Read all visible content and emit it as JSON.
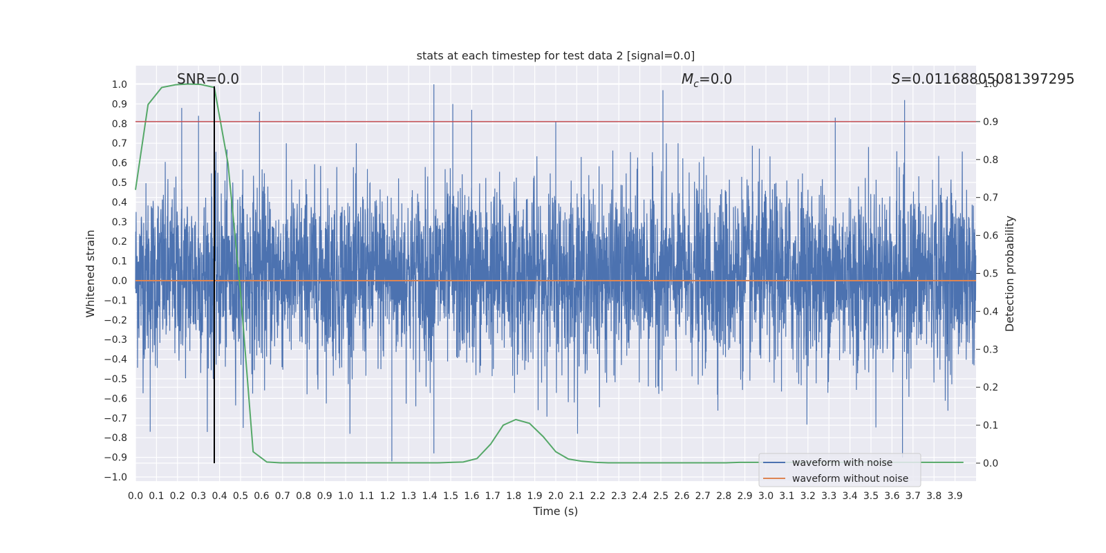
{
  "chart_data": {
    "type": "line",
    "title": "stats at each timestep for test data 2 [signal=0.0]",
    "xlabel": "Time (s)",
    "ylabel": "Whitened strain",
    "y2label": "Detection probability",
    "xlim": [
      0.0,
      4.0
    ],
    "ylim": [
      -1.03,
      1.05
    ],
    "y2lim": [
      -0.05,
      1.0
    ],
    "x_ticks": [
      0.0,
      0.1,
      0.2,
      0.3,
      0.4,
      0.5,
      0.6,
      0.7,
      0.8,
      0.9,
      1.0,
      1.1,
      1.2,
      1.3,
      1.4,
      1.5,
      1.6,
      1.7,
      1.8,
      1.9,
      2.0,
      2.1,
      2.2,
      2.3,
      2.4,
      2.5,
      2.6,
      2.7,
      2.8,
      2.9,
      3.0,
      3.1,
      3.2,
      3.3,
      3.4,
      3.5,
      3.6,
      3.7,
      3.8,
      3.9
    ],
    "x_tick_labels": [
      "0.0",
      "0.1",
      "0.2",
      "0.3",
      "0.4",
      "0.5",
      "0.6",
      "0.7",
      "0.8",
      "0.9",
      "1.0",
      "1.1",
      "1.2",
      "1.3",
      "1.4",
      "1.5",
      "1.6",
      "1.7",
      "1.8",
      "1.9",
      "2.0",
      "2.1",
      "2.2",
      "2.3",
      "2.4",
      "2.5",
      "2.6",
      "2.7",
      "2.8",
      "2.9",
      "3.0",
      "3.1",
      "3.2",
      "3.3",
      "3.4",
      "3.5",
      "3.6",
      "3.7",
      "3.8",
      "3.9"
    ],
    "y_ticks": [
      1.0,
      0.9,
      0.8,
      0.7,
      0.6,
      0.5,
      0.4,
      0.3,
      0.2,
      0.1,
      0.0,
      -0.1,
      -0.2,
      -0.3,
      -0.4,
      -0.5,
      -0.6,
      -0.7,
      -0.8,
      -0.9,
      -1.0
    ],
    "y_tick_labels": [
      "1.0",
      "0.9",
      "0.8",
      "0.7",
      "0.6",
      "0.5",
      "0.4",
      "0.3",
      "0.2",
      "0.1",
      "0.0",
      "−0.1",
      "−0.2",
      "−0.3",
      "−0.4",
      "−0.5",
      "−0.6",
      "−0.7",
      "−0.8",
      "−0.9",
      "−1.0"
    ],
    "y2_ticks": [
      1.0,
      0.9,
      0.8,
      0.7,
      0.6,
      0.5,
      0.4,
      0.3,
      0.2,
      0.1,
      0.0
    ],
    "y2_tick_labels": [
      "1.0",
      "0.9",
      "0.8",
      "0.7",
      "0.6",
      "0.5",
      "0.4",
      "0.3",
      "0.2",
      "0.1",
      "0.0"
    ],
    "grid": true,
    "legend_position": "lower-right",
    "annotations": {
      "snr": "SNR=0.0",
      "mc_symbol": "M",
      "mc_sub": "c",
      "mc_value": "=0.0",
      "s_symbol": "S",
      "s_value": "=0.0116880508139729​5"
    },
    "series": [
      {
        "name": "waveform with noise",
        "color": "#4c72b0",
        "description": "whitened strain noise, approx. uniform spread",
        "noise_envelope": [
          -0.78,
          0.7
        ],
        "peaks": [
          {
            "x": 0.22,
            "y": 0.88
          },
          {
            "x": 0.3,
            "y": 0.84
          },
          {
            "x": 0.59,
            "y": 0.86
          },
          {
            "x": 1.42,
            "y": 1.0
          },
          {
            "x": 1.51,
            "y": 0.9
          },
          {
            "x": 1.6,
            "y": 0.87
          },
          {
            "x": 2.0,
            "y": 0.81
          },
          {
            "x": 2.51,
            "y": 0.97
          },
          {
            "x": 3.33,
            "y": 0.83
          },
          {
            "x": 3.66,
            "y": 0.92
          },
          {
            "x": 1.22,
            "y": -0.92
          },
          {
            "x": 3.65,
            "y": -0.9
          },
          {
            "x": 0.07,
            "y": -0.77
          },
          {
            "x": 1.42,
            "y": -0.88
          }
        ]
      },
      {
        "name": "waveform without noise",
        "color": "#dd8452",
        "x": [
          0.0,
          4.0
        ],
        "y": [
          0.0,
          0.0
        ]
      },
      {
        "name": "detection probability",
        "color": "#55a868",
        "axis": "right",
        "x": [
          0.0,
          0.06,
          0.125,
          0.19,
          0.25,
          0.31,
          0.375,
          0.44,
          0.5,
          0.56,
          0.625,
          0.69,
          0.75,
          0.81,
          0.875,
          0.94,
          1.0,
          1.06,
          1.125,
          1.19,
          1.25,
          1.31,
          1.375,
          1.44,
          1.5,
          1.56,
          1.625,
          1.69,
          1.75,
          1.81,
          1.875,
          1.94,
          2.0,
          2.06,
          2.125,
          2.19,
          2.25,
          2.31,
          2.375,
          2.44,
          2.5,
          2.56,
          2.625,
          2.69,
          2.75,
          2.81,
          2.875,
          2.94,
          3.0,
          3.06,
          3.125,
          3.19,
          3.25,
          3.31,
          3.375,
          3.44,
          3.5,
          3.56,
          3.625,
          3.69,
          3.75,
          3.81,
          3.875,
          3.94
        ],
        "y": [
          0.72,
          0.945,
          0.99,
          0.997,
          0.999,
          0.998,
          0.99,
          0.79,
          0.45,
          0.03,
          0.003,
          0.001,
          0.001,
          0.001,
          0.001,
          0.001,
          0.001,
          0.001,
          0.001,
          0.001,
          0.001,
          0.001,
          0.001,
          0.001,
          0.002,
          0.003,
          0.012,
          0.05,
          0.1,
          0.115,
          0.105,
          0.07,
          0.03,
          0.011,
          0.005,
          0.002,
          0.001,
          0.001,
          0.001,
          0.001,
          0.001,
          0.001,
          0.001,
          0.001,
          0.001,
          0.001,
          0.002,
          0.002,
          0.002,
          0.002,
          0.002,
          0.002,
          0.002,
          0.002,
          0.002,
          0.002,
          0.002,
          0.002,
          0.002,
          0.002,
          0.002,
          0.002,
          0.002,
          0.002
        ]
      }
    ],
    "reference_lines": [
      {
        "type": "horizontal",
        "axis": "right",
        "y": 0.9,
        "color": "#c44e52"
      },
      {
        "type": "vertical",
        "x": 0.375,
        "y_range": [
          -0.93,
          0.99
        ],
        "color": "#000000"
      }
    ]
  }
}
